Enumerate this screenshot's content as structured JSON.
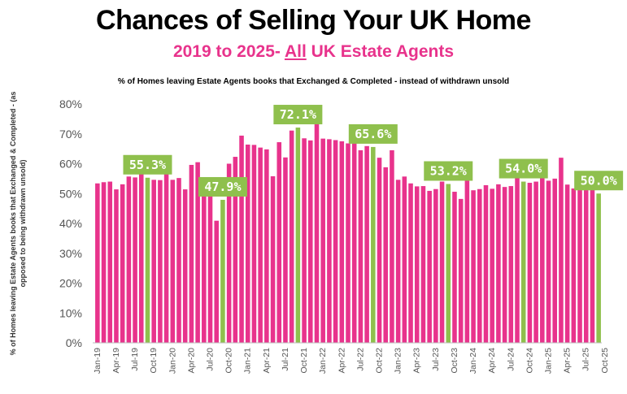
{
  "title": "Chances of Selling Your UK Home",
  "subtitle_pre": "2019 to 2025- ",
  "subtitle_u": "All",
  "subtitle_post": " UK Estate Agents",
  "colors": {
    "pink": "#e8338c",
    "green": "#8fc04d",
    "title_pink": "#e8338c"
  },
  "chart_data": {
    "type": "bar",
    "title": "% of Homes leaving Estate Agents books that Exchanged & Completed - instead of withdrawn unsold",
    "ylabel": "% of Homes leaving Estate Agents books that Exchanged & Completed - (as opposed to being withdrawn unsold)",
    "ylim": [
      0,
      80
    ],
    "yticks": [
      "0%",
      "10%",
      "20%",
      "30%",
      "40%",
      "50%",
      "60%",
      "70%",
      "80%"
    ],
    "grid": false,
    "xtick_labels": [
      "Jan-19",
      "Apr-19",
      "Jul-19",
      "Oct-19",
      "Jan-20",
      "Apr-20",
      "Jul-20",
      "Oct-20",
      "Jan-21",
      "Apr-21",
      "Jul-21",
      "Oct-21",
      "Jan-22",
      "Apr-22",
      "Jul-22",
      "Oct-22",
      "Jan-23",
      "Apr-23",
      "Jul-23",
      "Oct-23",
      "Jan-24",
      "Apr-24",
      "Jul-24",
      "Oct-24",
      "Jan-25",
      "Apr-25",
      "Jul-25",
      "Oct-25"
    ],
    "values": [
      53.4,
      53.8,
      54.0,
      51.4,
      53.1,
      55.7,
      55.4,
      58.1,
      55.3,
      54.6,
      54.5,
      60.6,
      54.6,
      55.2,
      51.4,
      59.6,
      60.5,
      53.6,
      49.4,
      40.9,
      47.9,
      60.0,
      62.3,
      69.4,
      66.4,
      66.3,
      65.4,
      64.8,
      55.8,
      67.2,
      62.1,
      71.1,
      72.1,
      68.5,
      67.8,
      73.5,
      68.4,
      68.2,
      67.9,
      67.5,
      66.8,
      67.3,
      64.5,
      65.9,
      65.6,
      62.0,
      58.8,
      64.5,
      54.6,
      55.7,
      53.4,
      52.4,
      52.5,
      50.9,
      51.5,
      54.0,
      53.2,
      50.6,
      48.2,
      57.6,
      51.1,
      51.5,
      52.8,
      51.6,
      53.1,
      52.2,
      52.5,
      55.9,
      54.0,
      53.6,
      54.0,
      59.5,
      54.3,
      55.0,
      62.0,
      53.0,
      51.7,
      51.3,
      51.2,
      55.4,
      50.0
    ],
    "highlight_labels": [
      {
        "index": 8,
        "label": "55.3%"
      },
      {
        "index": 20,
        "label": "47.9%"
      },
      {
        "index": 32,
        "label": "72.1%"
      },
      {
        "index": 44,
        "label": "65.6%"
      },
      {
        "index": 56,
        "label": "53.2%"
      },
      {
        "index": 68,
        "label": "54.0%"
      },
      {
        "index": 80,
        "label": "50.0%"
      }
    ]
  }
}
